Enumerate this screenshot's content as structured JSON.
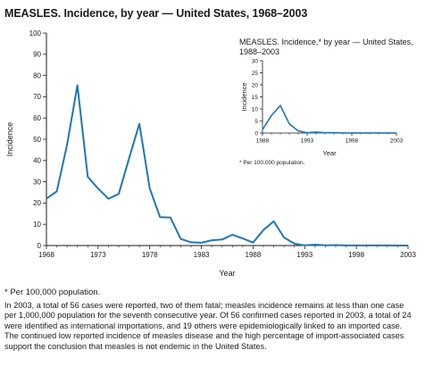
{
  "title": "MEASLES. Incidence, by year — United States, 1968–2003",
  "footnote": "* Per 100,000 population.",
  "paragraph": "In 2003, a total of 56 cases were reported, two of them fatal; measles incidence remains at less than one case per 1,000,000 population for the seventh consecutive year. Of 56 confirmed cases reported in 2003, a total of 24 were identified as international importations, and 19 others were epidemiologically linked to an imported case. The continued low reported incidence of measles disease and the high percentage of import-associated cases support the conclusion that measles is not endemic in the United States.",
  "colors": {
    "line": "#1f77b4",
    "axis": "#1a1a1a"
  },
  "chart_data": [
    {
      "type": "line",
      "xlabel": "Year",
      "ylabel": "Incidence",
      "xlim": [
        1968,
        2003
      ],
      "ylim": [
        0,
        100
      ],
      "xticks": [
        1968,
        1973,
        1978,
        1983,
        1988,
        1993,
        1998,
        2003
      ],
      "yticks": [
        0,
        10,
        20,
        30,
        40,
        50,
        60,
        70,
        80,
        90,
        100
      ],
      "grid": false,
      "series": [
        {
          "x": [
            1968,
            1969,
            1970,
            1971,
            1972,
            1973,
            1974,
            1975,
            1976,
            1977,
            1978,
            1979,
            1980,
            1981,
            1982,
            1983,
            1984,
            1985,
            1986,
            1987,
            1988,
            1989,
            1990,
            1991,
            1992,
            1993,
            1994,
            1995,
            1996,
            1997,
            1998,
            1999,
            2000,
            2001,
            2002,
            2003
          ],
          "values": [
            22.1,
            25.5,
            47.4,
            75.4,
            32.3,
            26.8,
            22.0,
            24.3,
            41.1,
            57.3,
            26.9,
            13.3,
            13.2,
            3.1,
            1.5,
            1.3,
            2.5,
            2.8,
            5.1,
            3.3,
            1.4,
            7.3,
            11.4,
            3.8,
            0.9,
            0.1,
            0.4,
            0.1,
            0.2,
            0.05,
            0.04,
            0.04,
            0.03,
            0.04,
            0.02,
            0.02
          ]
        }
      ]
    },
    {
      "type": "line",
      "title": "MEASLES. Incidence,* by year — United States, 1988–2003",
      "xlabel": "Year",
      "ylabel": "Incidence",
      "footnote": "* Per 100,000 population.",
      "xlim": [
        1988,
        2003
      ],
      "ylim": [
        0,
        30
      ],
      "xticks": [
        1988,
        1993,
        1998,
        2003
      ],
      "yticks": [
        0,
        5,
        10,
        15,
        20,
        25,
        30
      ],
      "grid": false,
      "series": [
        {
          "x": [
            1988,
            1989,
            1990,
            1991,
            1992,
            1993,
            1994,
            1995,
            1996,
            1997,
            1998,
            1999,
            2000,
            2001,
            2002,
            2003
          ],
          "values": [
            1.4,
            7.3,
            11.4,
            3.8,
            0.9,
            0.1,
            0.4,
            0.1,
            0.2,
            0.05,
            0.04,
            0.04,
            0.03,
            0.04,
            0.02,
            0.02
          ]
        }
      ]
    }
  ]
}
